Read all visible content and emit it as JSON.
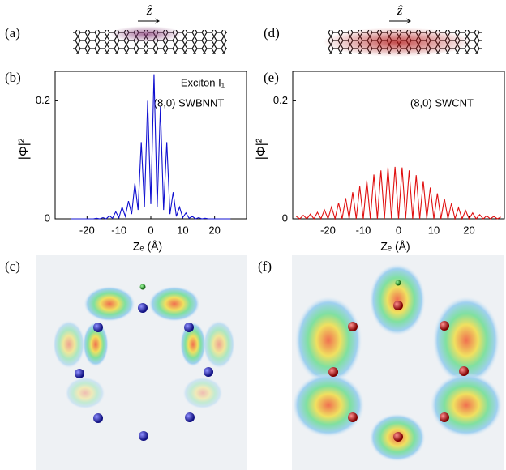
{
  "panel_labels": [
    "(a)",
    "(d)",
    "(b)",
    "(e)",
    "(c)",
    "(f)"
  ],
  "tube_axis_labels": [
    "ẑ",
    "ẑ"
  ],
  "chart_data": [
    {
      "type": "line",
      "color": "#1010d0",
      "ylabel": "|Φ|²",
      "xlabel": "Zₑ (Å)",
      "annotations": [
        "Exciton I₁",
        "(8,0) SWBNNT"
      ],
      "x": [
        -25,
        -24,
        -23,
        -22,
        -21,
        -20,
        -19,
        -18,
        -17,
        -16,
        -15,
        -14,
        -13,
        -12,
        -11,
        -10,
        -9,
        -8,
        -7,
        -6,
        -5,
        -4,
        -3,
        -2,
        -1,
        0,
        1,
        2,
        3,
        4,
        5,
        6,
        7,
        8,
        9,
        10,
        11,
        12,
        13,
        14,
        15,
        16,
        17,
        18,
        19,
        20,
        21,
        22,
        23,
        24,
        25
      ],
      "values": [
        0,
        0,
        0,
        0,
        0,
        0,
        0,
        0,
        0.001,
        0,
        0.002,
        0,
        0.005,
        0.001,
        0.012,
        0.002,
        0.02,
        0.004,
        0.03,
        0.008,
        0.06,
        0.015,
        0.13,
        0.02,
        0.2,
        0.025,
        0.245,
        0.02,
        0.19,
        0.015,
        0.13,
        0.008,
        0.045,
        0.004,
        0.02,
        0.002,
        0.01,
        0.001,
        0.004,
        0,
        0.002,
        0,
        0.001,
        0,
        0,
        0,
        0,
        0,
        0,
        0,
        0
      ],
      "xlim": [
        -30,
        30
      ],
      "xticks": [
        -20,
        -10,
        0,
        10,
        20
      ],
      "ylim": [
        0,
        0.25
      ],
      "yticks": [
        0,
        0.2
      ]
    },
    {
      "type": "line",
      "color": "#e01010",
      "ylabel": "|Φ|²",
      "xlabel": "Zₑ (Å)",
      "annotations": [
        "(8,0) SWCNT"
      ],
      "x": [
        -29,
        -28,
        -27,
        -26,
        -25,
        -24,
        -23,
        -22,
        -21,
        -20,
        -19,
        -18,
        -17,
        -16,
        -15,
        -14,
        -13,
        -12,
        -11,
        -10,
        -9,
        -8,
        -7,
        -6,
        -5,
        -4,
        -3,
        -2,
        -1,
        0,
        1,
        2,
        3,
        4,
        5,
        6,
        7,
        8,
        9,
        10,
        11,
        12,
        13,
        14,
        15,
        16,
        17,
        18,
        19,
        20,
        21,
        22,
        23,
        24,
        25,
        26,
        27,
        28,
        29
      ],
      "values": [
        0.004,
        0,
        0.006,
        0,
        0.008,
        0,
        0.011,
        0,
        0.015,
        0,
        0.02,
        0,
        0.027,
        0,
        0.035,
        0,
        0.045,
        0,
        0.055,
        0,
        0.065,
        0,
        0.075,
        0,
        0.082,
        0,
        0.087,
        0,
        0.088,
        0,
        0.087,
        0,
        0.082,
        0,
        0.074,
        0,
        0.064,
        0,
        0.053,
        0,
        0.043,
        0,
        0.034,
        0,
        0.026,
        0,
        0.019,
        0,
        0.014,
        0,
        0.01,
        0,
        0.007,
        0,
        0.005,
        0,
        0.004,
        0,
        0.003
      ],
      "xlim": [
        -30,
        30
      ],
      "xticks": [
        -20,
        -10,
        0,
        10,
        20
      ],
      "ylim": [
        0,
        0.25
      ],
      "yticks": [
        0,
        0.2
      ]
    }
  ]
}
